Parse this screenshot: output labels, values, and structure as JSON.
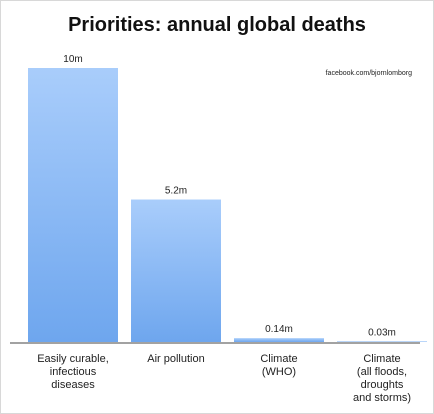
{
  "chart_data": {
    "type": "bar",
    "title": "Priorities: annual global deaths",
    "source": "facebook.com/bjornlomborg",
    "categories": [
      [
        "Easily curable,",
        "infectious",
        "diseases"
      ],
      [
        "Air pollution"
      ],
      [
        "Climate",
        "(WHO)"
      ],
      [
        "Climate",
        "(all floods,",
        "droughts",
        "and storms)"
      ]
    ],
    "values": [
      10,
      5.2,
      0.14,
      0.03
    ],
    "value_labels": [
      "10m",
      "5.2m",
      "0.14m",
      "0.03m"
    ],
    "ylim": [
      0,
      10
    ],
    "grid": false,
    "bar_color_top": "#a9cdfb",
    "bar_color_bottom": "#6ea6ee"
  }
}
